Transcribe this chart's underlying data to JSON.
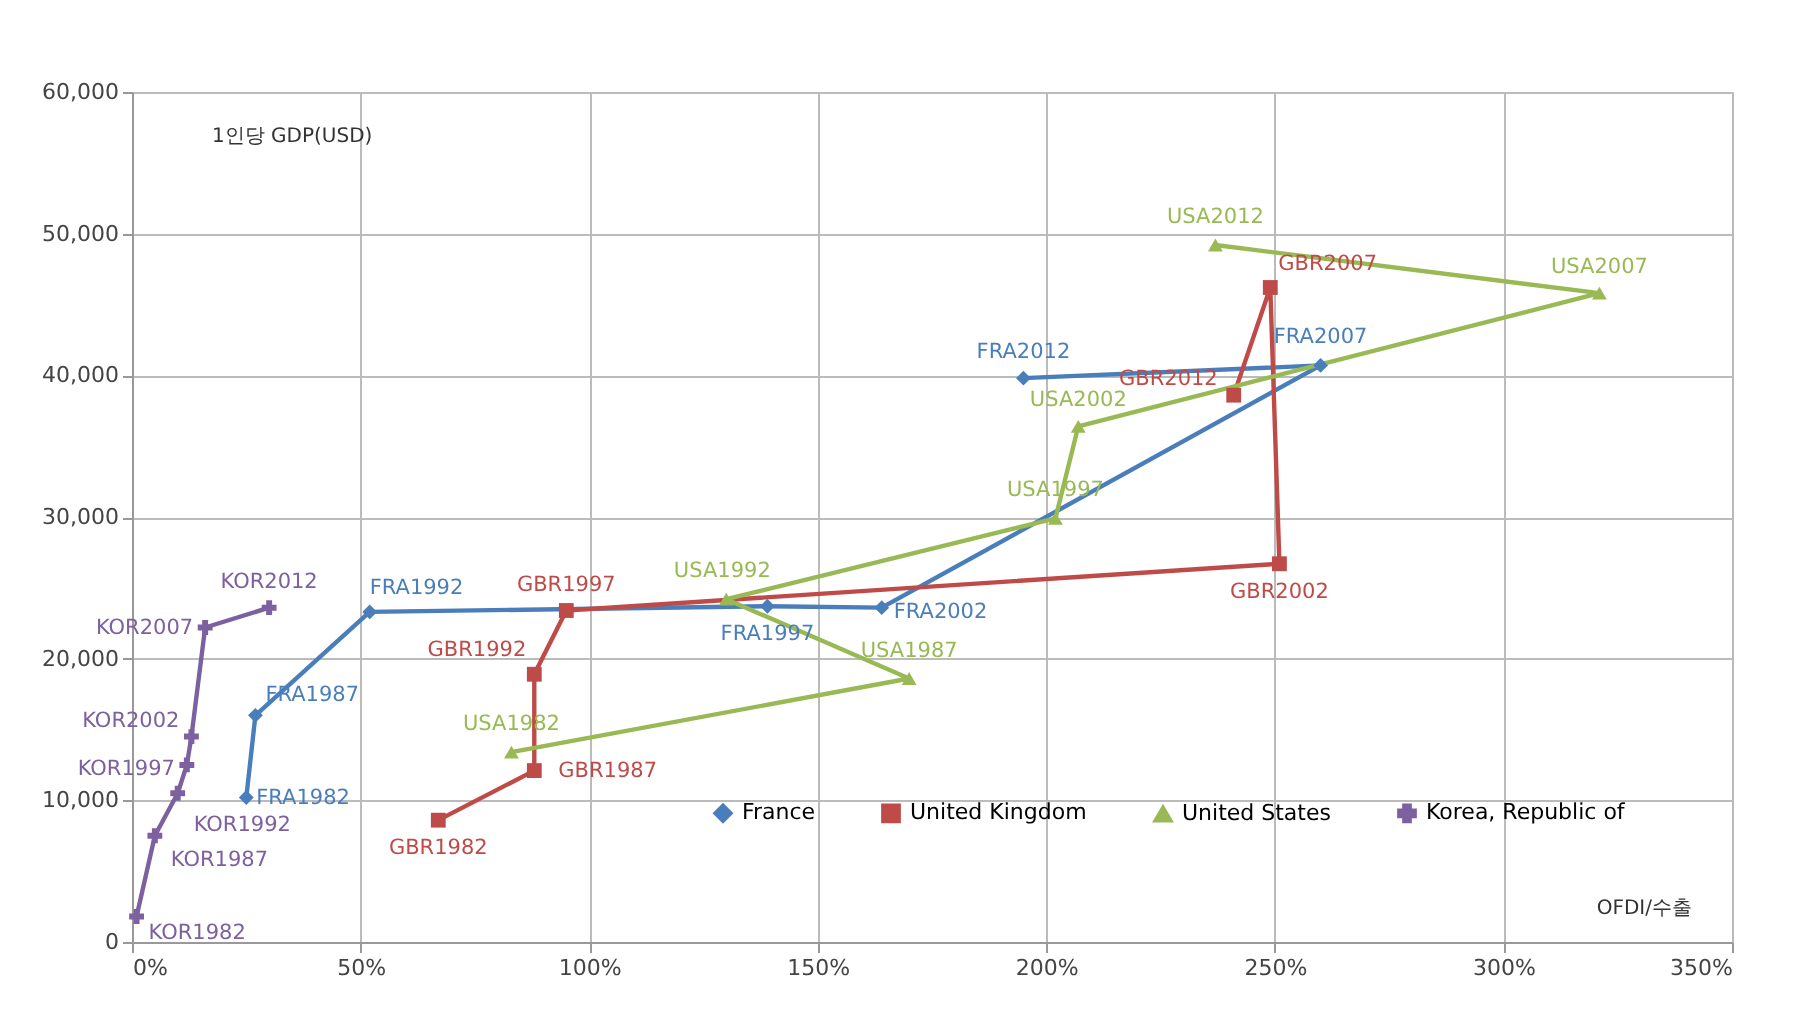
{
  "chart_data": {
    "type": "line",
    "xlabel": "OFDI/수출",
    "ylabel": "1인당 GDP(USD)",
    "xlim": [
      0,
      350
    ],
    "xticks": [
      {
        "value": 0,
        "label": "0%"
      },
      {
        "value": 50,
        "label": "50%"
      },
      {
        "value": 100,
        "label": "100%"
      },
      {
        "value": 150,
        "label": "150%"
      },
      {
        "value": 200,
        "label": "200%"
      },
      {
        "value": 250,
        "label": "250%"
      },
      {
        "value": 300,
        "label": "300%"
      },
      {
        "value": 350,
        "label": "350%"
      }
    ],
    "ylim": [
      0,
      60000
    ],
    "yticks": [
      0,
      {
        "value": 10000,
        "label": "10,000"
      },
      {
        "value": 20000,
        "label": "20,000"
      },
      {
        "value": 30000,
        "label": "30,000"
      },
      {
        "value": 40000,
        "label": "40,000"
      },
      {
        "value": 50000,
        "label": "50,000"
      },
      {
        "value": 60000,
        "label": "60,000"
      }
    ],
    "grid": true,
    "legend": "bottom",
    "line_style": "solid",
    "series": [
      {
        "name": "France",
        "color": "#4a7ebb",
        "marker": "diamond",
        "x": [
          25,
          27,
          52,
          139,
          164,
          260,
          195
        ],
        "values": [
          10200,
          16000,
          23300,
          23700,
          23600,
          40700,
          39800
        ],
        "value_labels": [
          "FRA1982",
          "FRA1987",
          "FRA1992",
          "FRA1997",
          "FRA2002",
          "FRA2007",
          "FRA2012"
        ]
      },
      {
        "name": "United Kingdom",
        "color": "#be4b48",
        "marker": "square",
        "x": [
          67,
          88,
          88,
          95,
          251,
          249,
          241
        ],
        "values": [
          8600,
          12100,
          18900,
          23400,
          26700,
          46200,
          38600
        ],
        "value_labels": [
          "GBR1982",
          "GBR1987",
          "GBR1992",
          "GBR1997",
          "GBR2002",
          "GBR2007",
          "GBR2012"
        ]
      },
      {
        "name": "United States",
        "color": "#98b954",
        "marker": "triangle",
        "x": [
          83,
          170,
          130,
          202,
          207,
          321,
          237
        ],
        "values": [
          13400,
          18600,
          24200,
          29900,
          36400,
          45800,
          49200
        ],
        "value_labels": [
          "USA1982",
          "USA1987",
          "USA1992",
          "USA1997",
          "USA2002",
          "USA2007",
          "USA2012"
        ]
      },
      {
        "name": "Korea, Republic of",
        "color": "#7d60a0",
        "marker": "cross",
        "x": [
          1,
          5,
          10,
          12,
          13,
          16,
          30
        ],
        "values": [
          1800,
          7500,
          10500,
          12500,
          14500,
          22200,
          23600
        ],
        "value_labels": [
          "KOR1982",
          "KOR1987",
          "KOR1992",
          "KOR1997",
          "KOR2002",
          "KOR2007",
          "KOR2012"
        ]
      }
    ]
  }
}
